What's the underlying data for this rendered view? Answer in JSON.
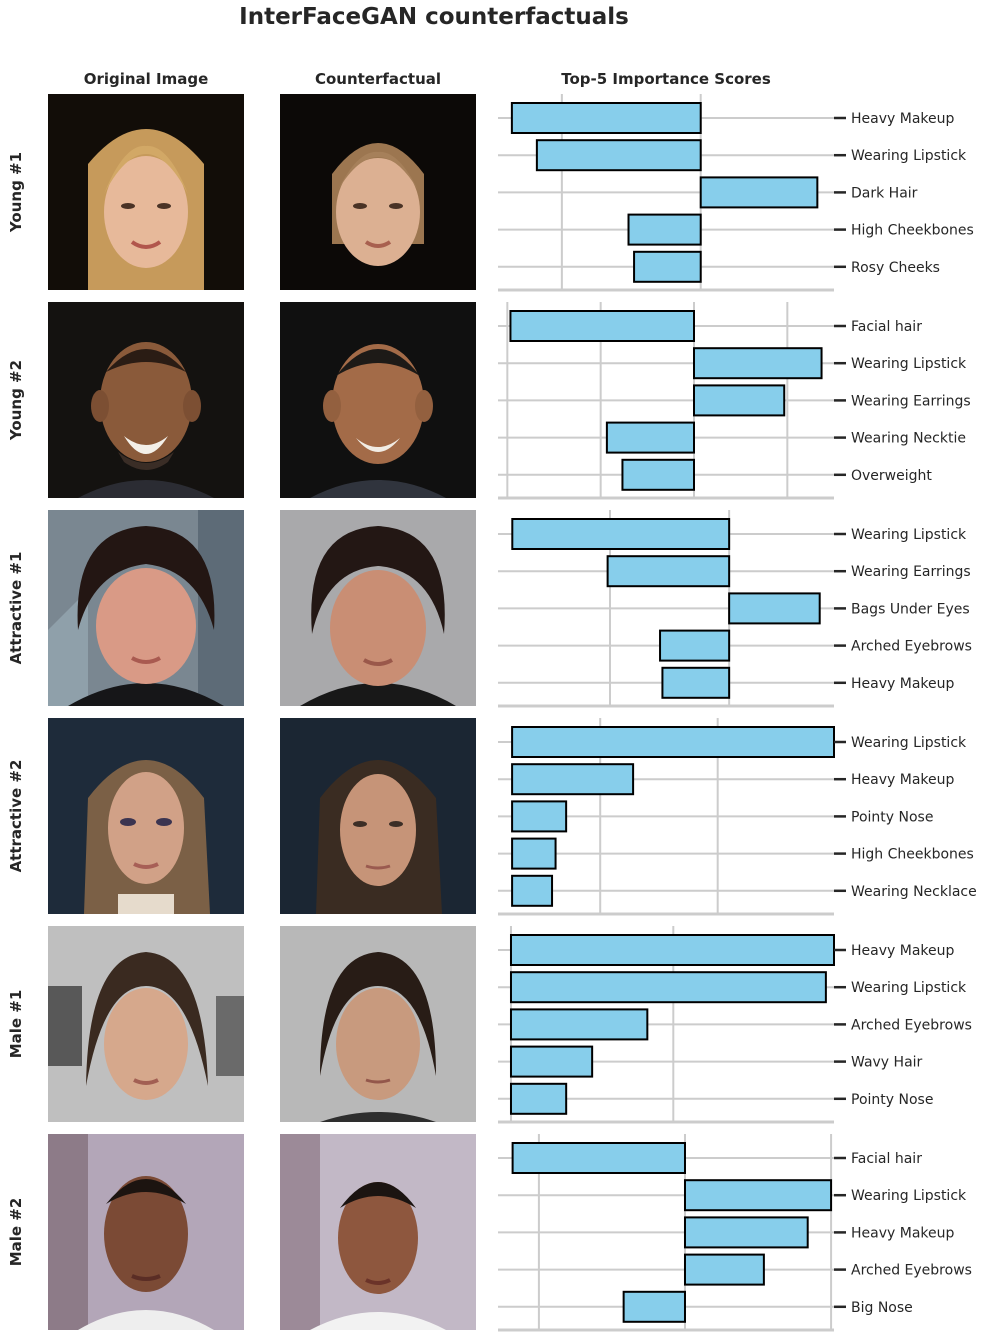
{
  "title": "InterFaceGAN counterfactuals",
  "column_headers": {
    "original": "Original Image",
    "counterfactual": "Counterfactual",
    "scores": "Top-5 Importance Scores"
  },
  "colors": {
    "bar_fill": "#87ceeb",
    "bar_edge": "#000000",
    "grid": "#cccccc",
    "text": "#262626"
  },
  "rows": [
    {
      "label": "Young #1",
      "original_image": "young-woman-blonde-hair-dark-background",
      "counterfactual_image": "young-woman-short-hair-dark-background"
    },
    {
      "label": "Young #2",
      "original_image": "smiling-man-goatee-dark-background",
      "counterfactual_image": "smiling-younger-man-dark-background"
    },
    {
      "label": "Attractive #1",
      "original_image": "woman-curly-dark-hair-earrings",
      "counterfactual_image": "person-curly-dark-hair-grey-background"
    },
    {
      "label": "Attractive #2",
      "original_image": "woman-long-hair-heavy-makeup-dark-background",
      "counterfactual_image": "woman-long-dark-hair-dark-background"
    },
    {
      "label": "Male #1",
      "original_image": "woman-dark-hair-grey-background",
      "counterfactual_image": "woman-dark-hair-ponytail-grey-background"
    },
    {
      "label": "Male #2",
      "original_image": "man-short-hair-white-shirt",
      "counterfactual_image": "woman-short-hair-white-shirt"
    }
  ],
  "chart_data": [
    {
      "type": "bar",
      "orientation": "horizontal",
      "title": "Young #1",
      "categories": [
        "Heavy Makeup",
        "Wearing Lipstick",
        "Dark Hair",
        "High Cheekbones",
        "Rosy Cheeks"
      ],
      "values": [
        -0.68,
        -0.59,
        0.42,
        -0.26,
        -0.24
      ],
      "xlim": [
        -0.73,
        0.48
      ],
      "grid_x": [
        -0.5,
        0
      ],
      "grid": true
    },
    {
      "type": "bar",
      "orientation": "horizontal",
      "title": "Young #2",
      "categories": [
        "Facial hair",
        "Wearing Lipstick",
        "Wearing Earrings",
        "Wearing Necktie",
        "Overweight"
      ],
      "values": [
        -0.59,
        0.41,
        0.29,
        -0.28,
        -0.23
      ],
      "xlim": [
        -0.63,
        0.45
      ],
      "grid_x": [
        -0.6,
        -0.3,
        0,
        0.3
      ],
      "grid": true
    },
    {
      "type": "bar",
      "orientation": "horizontal",
      "title": "Attractive #1",
      "categories": [
        "Wearing Lipstick",
        "Wearing Earrings",
        "Bags Under Eyes",
        "Arched Eyebrows",
        "Heavy Makeup"
      ],
      "values": [
        -0.91,
        -0.51,
        0.38,
        -0.29,
        -0.28
      ],
      "xlim": [
        -0.97,
        0.44
      ],
      "grid_x": [
        -0.5,
        0
      ],
      "grid": true
    },
    {
      "type": "bar",
      "orientation": "horizontal",
      "title": "Attractive #2",
      "categories": [
        "Wearing Lipstick",
        "Heavy Makeup",
        "Pointy Nose",
        "High Cheekbones",
        "Wearing Necklace"
      ],
      "values": [
        2.74,
        1.03,
        0.46,
        0.37,
        0.34
      ],
      "xlim": [
        -0.12,
        2.74
      ],
      "grid_x": [
        0.75,
        1.75
      ],
      "grid": true
    },
    {
      "type": "bar",
      "orientation": "horizontal",
      "title": "Male #1",
      "categories": [
        "Heavy Makeup",
        "Wearing Lipstick",
        "Arched Eyebrows",
        "Wavy Hair",
        "Pointy Nose"
      ],
      "values": [
        1.99,
        1.94,
        0.84,
        0.5,
        0.34
      ],
      "xlim": [
        -0.08,
        1.99
      ],
      "grid_x": [
        0,
        1
      ],
      "grid": true
    },
    {
      "type": "bar",
      "orientation": "horizontal",
      "title": "Male #2",
      "categories": [
        "Facial hair",
        "Wearing Lipstick",
        "Heavy Makeup",
        "Arched Eyebrows",
        "Big Nose"
      ],
      "values": [
        -0.59,
        0.5,
        0.42,
        0.27,
        -0.21
      ],
      "xlim": [
        -0.64,
        0.51
      ],
      "grid_x": [
        -0.5,
        0,
        0.5
      ],
      "grid": true
    }
  ]
}
